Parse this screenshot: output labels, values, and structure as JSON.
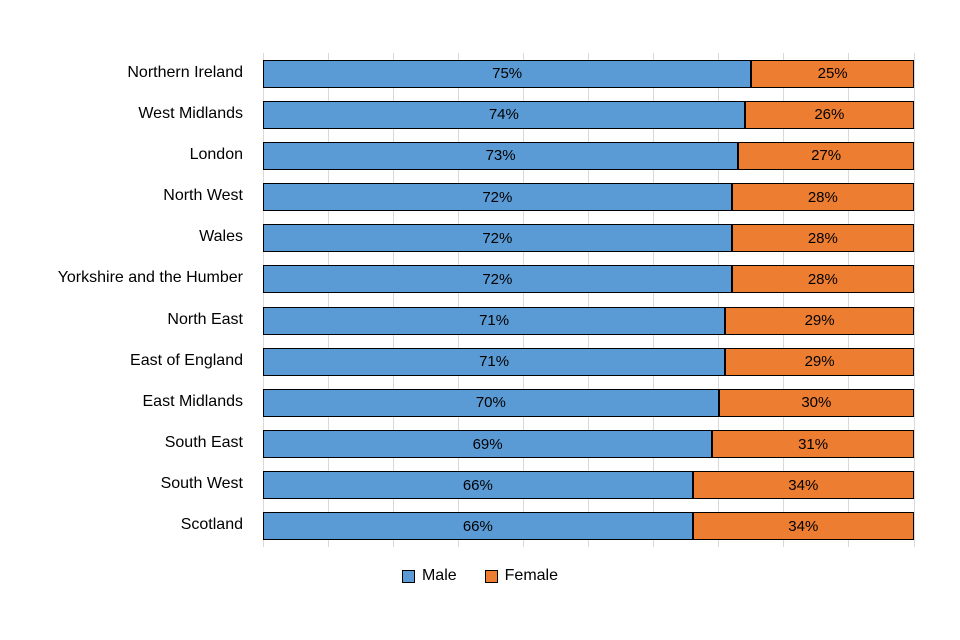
{
  "chart_data": {
    "type": "bar",
    "variant": "horizontal-stacked-100-percent",
    "title": "",
    "xlabel": "",
    "ylabel": "",
    "xlim": [
      0,
      100
    ],
    "gridline_interval_percent": 10,
    "grid": true,
    "legend_position": "bottom",
    "value_suffix": "%",
    "categories": [
      "Northern Ireland",
      "West Midlands",
      "London",
      "North West",
      "Wales",
      "Yorkshire and the Humber",
      "North East",
      "East of England",
      "East Midlands",
      "South East",
      "South West",
      "Scotland"
    ],
    "series": [
      {
        "name": "Male",
        "color": "#5B9BD5",
        "values": [
          75,
          74,
          73,
          72,
          72,
          72,
          71,
          71,
          70,
          69,
          66,
          66
        ]
      },
      {
        "name": "Female",
        "color": "#ED7D31",
        "values": [
          25,
          26,
          27,
          28,
          28,
          28,
          29,
          29,
          30,
          31,
          34,
          34
        ]
      }
    ]
  },
  "legend": {
    "items": [
      {
        "label": "Male",
        "color": "#5B9BD5"
      },
      {
        "label": "Female",
        "color": "#ED7D31"
      }
    ]
  },
  "colors": {
    "male": "#5B9BD5",
    "female": "#ED7D31",
    "gridline": "#D9D9D9",
    "bar_border": "#000000",
    "text": "#000000",
    "background": "#FFFFFF"
  }
}
